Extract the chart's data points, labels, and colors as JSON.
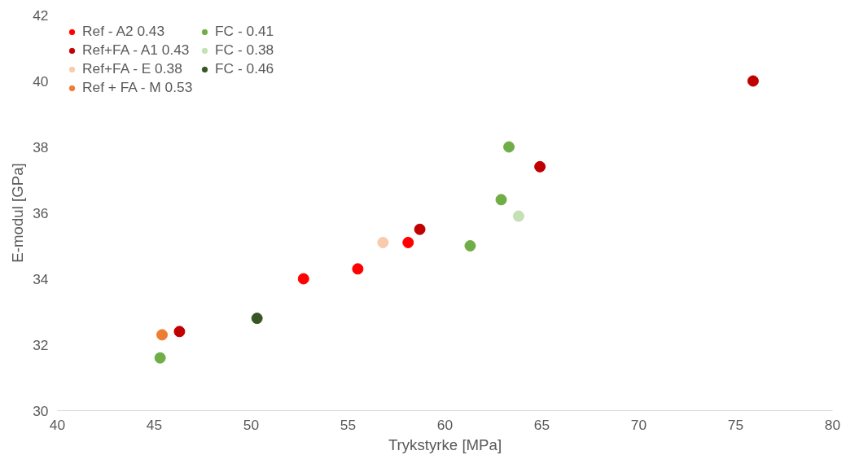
{
  "chart_data": {
    "type": "scatter",
    "xlabel": "Trykstyrke [MPa]",
    "ylabel": "E-modul [GPa]",
    "xlim": [
      40,
      80
    ],
    "xticks": [
      40,
      45,
      50,
      55,
      60,
      65,
      70,
      75,
      80
    ],
    "ylim": [
      30,
      42
    ],
    "yticks": [
      30,
      32,
      34,
      36,
      38,
      40,
      42
    ],
    "grid": false,
    "legend": "top left",
    "marker": "circle",
    "series": [
      {
        "name": "Ref - A2 0.43",
        "color": "#ff0000",
        "x": [
          52.7,
          55.5,
          58.1
        ],
        "values": [
          34.0,
          34.3,
          35.1
        ]
      },
      {
        "name": "Ref+FA - A1 0.43",
        "color": "#c00000",
        "x": [
          46.3,
          58.7,
          64.9,
          75.9
        ],
        "values": [
          32.4,
          35.5,
          37.4,
          40.0
        ]
      },
      {
        "name": "Ref+FA - E 0.38",
        "color": "#f8cbad",
        "x": [
          56.8
        ],
        "values": [
          35.1
        ]
      },
      {
        "name": "Ref + FA - M 0.53",
        "color": "#ed7d31",
        "x": [
          45.4
        ],
        "values": [
          32.3
        ]
      },
      {
        "name": "FC - 0.41",
        "color": "#70ad47",
        "x": [
          45.3,
          61.3,
          62.9,
          63.3
        ],
        "values": [
          31.6,
          35.0,
          36.4,
          38.0
        ]
      },
      {
        "name": "FC - 0.38",
        "color": "#c5e0b4",
        "x": [
          63.8
        ],
        "values": [
          35.9
        ]
      },
      {
        "name": "FC - 0.46",
        "color": "#375623",
        "x": [
          50.3
        ],
        "values": [
          32.8
        ]
      }
    ]
  }
}
